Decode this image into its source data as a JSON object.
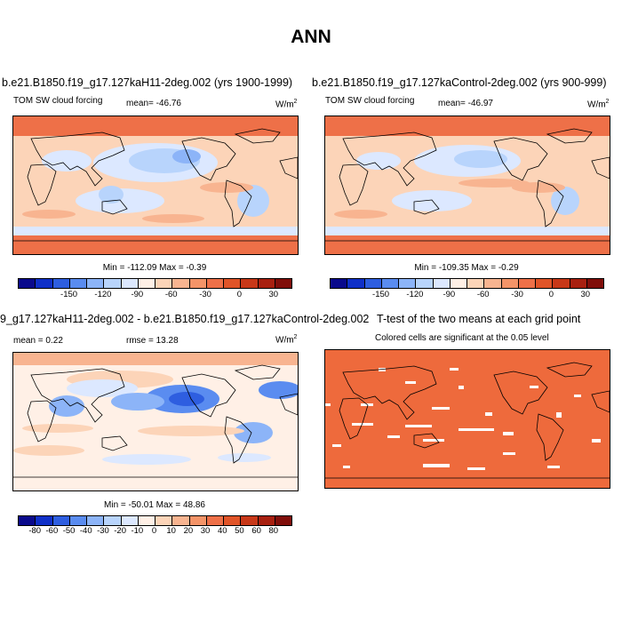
{
  "page_title": "ANN",
  "panels": {
    "p1": {
      "title": "b.e21.B1850.f19_g17.127kaH11-2deg.002 (yrs 1900-1999)",
      "variable": "TOM SW cloud forcing",
      "mean": "mean= -46.76",
      "units": "W/m",
      "units_sup": "2",
      "minmax": "Min = -112.09 Max =  -0.39"
    },
    "p2": {
      "title": "b.e21.B1850.f19_g17.127kaControl-2deg.002 (yrs 900-999)",
      "variable": "TOM SW cloud forcing",
      "mean": "mean= -46.97",
      "units": "W/m",
      "units_sup": "2",
      "minmax": "Min = -109.35 Max =  -0.29"
    },
    "p3": {
      "title": "9_g17.127kaH11-2deg.002 - b.e21.B1850.f19_g17.127kaControl-2deg.002",
      "mean": "mean =   0.22",
      "rmse": "rmse =  13.28",
      "units": "W/m",
      "units_sup": "2",
      "minmax": "Min = -50.01 Max =  48.86"
    },
    "p4": {
      "title": "T-test of the two means at each grid point",
      "subtitle": "Colored cells are significant at the 0.05 level"
    }
  },
  "colorbar_top": {
    "ticks": [
      "-150",
      "-120",
      "-90",
      "-60",
      "-30",
      "0",
      "30"
    ],
    "colors": [
      "#0a0a8c",
      "#1030c8",
      "#2e5ee0",
      "#5a8cf0",
      "#8cb4f8",
      "#b8d4fc",
      "#dce8ff",
      "#fff0e6",
      "#fcd4b8",
      "#f8b490",
      "#f49468",
      "#ee7048",
      "#e05428",
      "#c83818",
      "#a82010",
      "#800e0a"
    ]
  },
  "colorbar_bottom": {
    "ticks": [
      "-80",
      "-60",
      "-50",
      "-40",
      "-30",
      "-20",
      "-10",
      "0",
      "10",
      "20",
      "30",
      "40",
      "50",
      "60",
      "80"
    ],
    "colors": [
      "#0a0a8c",
      "#1030c8",
      "#2e5ee0",
      "#5a8cf0",
      "#8cb4f8",
      "#b8d4fc",
      "#dce8ff",
      "#fff0e6",
      "#fcd4b8",
      "#f8b490",
      "#f49468",
      "#ee7048",
      "#e05428",
      "#c83818",
      "#a82010",
      "#800e0a"
    ]
  },
  "colors": {
    "ttest_fill": "#ee6a3c",
    "coast": "#000000"
  }
}
